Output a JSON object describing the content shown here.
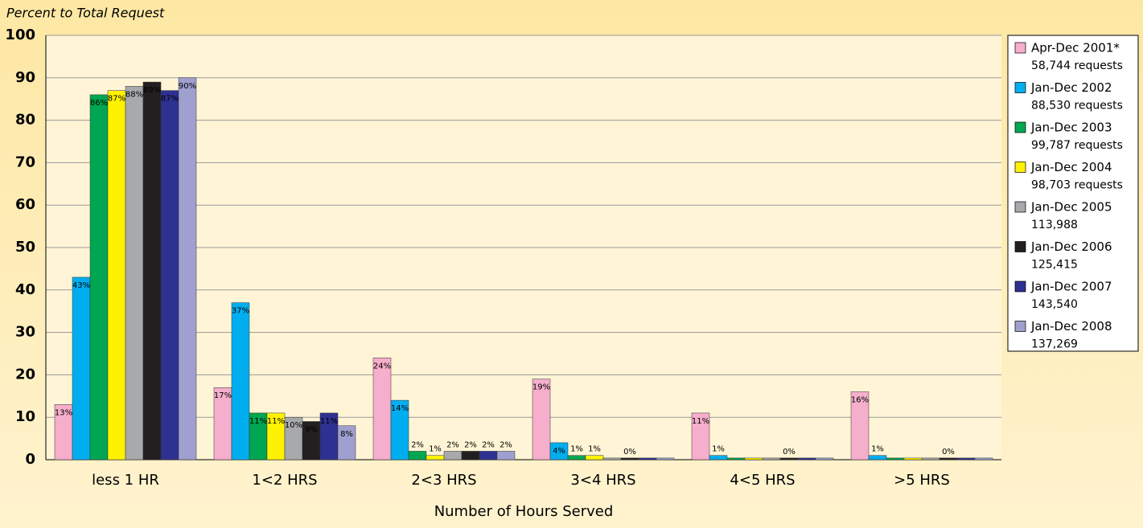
{
  "chart_data": {
    "type": "bar",
    "y_axis_label": "Percent to Total Request",
    "x_axis_label": "Number of Hours Served",
    "categories": [
      "less 1 HR",
      "1<2 HRS",
      "2<3 HRS",
      "3<4 HRS",
      "4<5 HRS",
      ">5 HRS"
    ],
    "ylim": [
      0,
      100
    ],
    "yticks": [
      0,
      10,
      20,
      30,
      40,
      50,
      60,
      70,
      80,
      90,
      100
    ],
    "grid": true,
    "legend": "right",
    "series": [
      {
        "name": "Apr-Dec 2001*",
        "requests": "58,744 requests",
        "color": "#f5aecb",
        "values": [
          13,
          17,
          24,
          19,
          11,
          16
        ],
        "value_labels": [
          "13%",
          "17%",
          "24%",
          "19%",
          "11%",
          "16%"
        ]
      },
      {
        "name": "Jan-Dec 2002",
        "requests": "88,530 requests",
        "color": "#00aeef",
        "values": [
          43,
          37,
          14,
          4,
          1,
          1
        ],
        "value_labels": [
          "43%",
          "37%",
          "14%",
          "4%",
          "1%",
          "1%"
        ]
      },
      {
        "name": "Jan-Dec 2003",
        "requests": "99,787 requests",
        "color": "#00a651",
        "values": [
          86,
          11,
          2,
          1,
          0.4,
          0.4
        ],
        "value_labels": [
          "86%",
          "11%",
          "2%",
          "1%",
          null,
          null
        ]
      },
      {
        "name": "Jan-Dec 2004",
        "requests": "98,703 requests",
        "color": "#fff200",
        "values": [
          87,
          11,
          1,
          1,
          0.4,
          0.4
        ],
        "value_labels": [
          "87%",
          "11%",
          "1%",
          "1%",
          null,
          null
        ]
      },
      {
        "name": "Jan-Dec 2005",
        "requests": "113,988",
        "color": "#a7a9ac",
        "values": [
          88,
          10,
          2,
          0.4,
          0.4,
          0.4
        ],
        "value_labels": [
          "88%",
          "10%",
          "2%",
          null,
          null,
          null
        ]
      },
      {
        "name": "Jan-Dec 2006",
        "requests": "125,415",
        "color": "#231f20",
        "values": [
          89,
          9,
          2,
          0.4,
          0.4,
          0.4
        ],
        "value_labels": [
          "89%",
          "9%",
          "2%",
          "0%",
          "0%",
          "0%"
        ]
      },
      {
        "name": "Jan-Dec 2007",
        "requests": "143,540",
        "color": "#2e3192",
        "values": [
          87,
          11,
          2,
          0.4,
          0.4,
          0.4
        ],
        "value_labels": [
          "87%",
          "11%",
          "2%",
          null,
          null,
          null
        ]
      },
      {
        "name": "Jan-Dec 2008",
        "requests": "137,269",
        "color": "#9fa0d0",
        "values": [
          90,
          8,
          2,
          0.4,
          0.4,
          0.4
        ],
        "value_labels": [
          "90%",
          "8%",
          "2%",
          null,
          null,
          null
        ]
      }
    ]
  }
}
